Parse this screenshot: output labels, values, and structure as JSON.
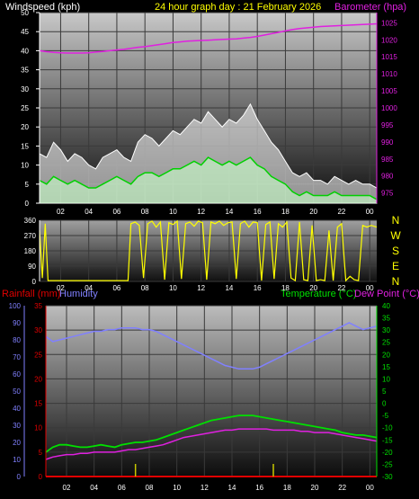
{
  "header": {
    "left_label": "Windspeed (kph)",
    "title": "24 hour graph day : 21 February 2026",
    "right_label": "Barometer (hpa)"
  },
  "panel3_labels": {
    "rainfall": "Rainfall (mm)",
    "humidity": "Humidity",
    "temperature": "Temperature (°C)",
    "dewpoint": "Dew Point (°C)"
  },
  "colors": {
    "wind_gust": "#ffffff",
    "wind_avg": "#c8ffc8",
    "wind_avg_line": "#00d000",
    "barometer": "#e020e0",
    "direction": "#ffff00",
    "humidity": "#8080ff",
    "temperature": "#00e000",
    "dewpoint": "#e020e0",
    "rain": "#e00000",
    "rain_marker": "#c8c800",
    "axis_left": "#ffffff",
    "axis_rain": "#e00000",
    "axis_temp": "#00e000",
    "axis_humidity": "#8080ff"
  },
  "x_ticks": [
    "02",
    "04",
    "06",
    "08",
    "10",
    "12",
    "14",
    "16",
    "18",
    "20",
    "22",
    "00"
  ],
  "chart_data": [
    {
      "type": "line",
      "name": "wind-and-barometer",
      "x_range": [
        0.5,
        24.5
      ],
      "wind_axis": {
        "ylim": [
          0,
          50
        ],
        "ticks": [
          0,
          5,
          10,
          15,
          20,
          25,
          30,
          35,
          40,
          45,
          50
        ]
      },
      "baro_axis": {
        "ylim": [
          972,
          1028
        ],
        "ticks": [
          975,
          980,
          985,
          990,
          995,
          1000,
          1005,
          1010,
          1015,
          1020,
          1025
        ]
      },
      "x": [
        0.5,
        1,
        1.5,
        2,
        2.5,
        3,
        3.5,
        4,
        4.5,
        5,
        5.5,
        6,
        6.5,
        7,
        7.5,
        8,
        8.5,
        9,
        9.5,
        10,
        10.5,
        11,
        11.5,
        12,
        12.5,
        13,
        13.5,
        14,
        14.5,
        15,
        15.5,
        16,
        16.5,
        17,
        17.5,
        18,
        18.5,
        19,
        19.5,
        20,
        20.5,
        21,
        21.5,
        22,
        22.5,
        23,
        23.5,
        24,
        24.5
      ],
      "series": [
        {
          "key": "gust",
          "values": [
            13,
            12,
            16,
            14,
            11,
            13,
            12,
            10,
            9,
            12,
            13,
            14,
            12,
            11,
            16,
            18,
            17,
            15,
            17,
            19,
            18,
            20,
            22,
            21,
            24,
            22,
            20,
            22,
            21,
            23,
            26,
            22,
            19,
            16,
            14,
            11,
            8,
            7,
            8,
            6,
            6,
            5,
            7,
            6,
            5,
            6,
            5,
            5,
            4
          ]
        },
        {
          "key": "avg",
          "values": [
            6,
            5,
            7,
            6,
            5,
            6,
            5,
            4,
            4,
            5,
            6,
            7,
            6,
            5,
            7,
            8,
            8,
            7,
            8,
            9,
            9,
            10,
            11,
            10,
            12,
            11,
            10,
            11,
            10,
            11,
            12,
            10,
            9,
            7,
            6,
            5,
            3,
            2,
            3,
            2,
            2,
            2,
            3,
            2,
            2,
            2,
            2,
            2,
            1
          ]
        },
        {
          "key": "barometer",
          "values": [
            1016.8,
            1016.5,
            1016.3,
            1016.2,
            1016.1,
            1016.1,
            1016.1,
            1016.2,
            1016.4,
            1016.6,
            1016.8,
            1017.0,
            1017.2,
            1017.5,
            1017.8,
            1018.0,
            1018.3,
            1018.6,
            1018.9,
            1019.2,
            1019.4,
            1019.6,
            1019.7,
            1019.8,
            1019.9,
            1020.0,
            1020.1,
            1020.2,
            1020.3,
            1020.5,
            1020.7,
            1021.0,
            1021.4,
            1021.8,
            1022.2,
            1022.6,
            1023.0,
            1023.3,
            1023.5,
            1023.7,
            1023.9,
            1024.0,
            1024.1,
            1024.2,
            1024.3,
            1024.4,
            1024.5,
            1024.6,
            1024.7
          ]
        }
      ]
    },
    {
      "type": "line",
      "name": "wind-direction",
      "x_range": [
        0.5,
        24.5
      ],
      "ylim": [
        0,
        360
      ],
      "y_ticks": [
        0,
        90,
        180,
        270,
        360
      ],
      "direction_labels": [
        "N",
        "W",
        "S",
        "E",
        "N"
      ],
      "x": [
        0.5,
        0.7,
        0.9,
        1.1,
        2,
        4,
        6,
        6.8,
        7,
        7.3,
        7.6,
        7.9,
        8.2,
        8.5,
        8.8,
        9.1,
        9.4,
        9.7,
        10,
        10.3,
        10.6,
        10.9,
        11.2,
        11.5,
        11.8,
        12.1,
        12.4,
        12.7,
        13,
        13.3,
        13.6,
        13.9,
        14.2,
        14.5,
        14.8,
        15.1,
        15.4,
        15.7,
        16,
        16.3,
        16.6,
        16.9,
        17.2,
        17.5,
        17.8,
        18.1,
        18.4,
        18.7,
        19,
        19.3,
        19.6,
        19.9,
        20.2,
        20.5,
        20.8,
        21.1,
        21.4,
        21.7,
        22,
        22.3,
        22.6,
        22.9,
        23.2,
        23.5,
        23.8,
        24.1,
        24.5
      ],
      "values": [
        300,
        20,
        340,
        5,
        5,
        5,
        5,
        5,
        340,
        350,
        330,
        20,
        340,
        355,
        320,
        350,
        10,
        345,
        335,
        355,
        15,
        340,
        350,
        325,
        355,
        345,
        10,
        350,
        340,
        355,
        330,
        345,
        350,
        15,
        340,
        355,
        320,
        350,
        345,
        5,
        335,
        350,
        15,
        340,
        320,
        350,
        20,
        5,
        350,
        10,
        5,
        330,
        5,
        10,
        5,
        300,
        5,
        320,
        340,
        5,
        30,
        10,
        5,
        330,
        320,
        330,
        320
      ]
    },
    {
      "type": "line",
      "name": "temperature-humidity-rain",
      "x_range": [
        0.5,
        24.5
      ],
      "temp_axis": {
        "ylim": [
          -30,
          40
        ],
        "ticks": [
          -30,
          -25,
          -20,
          -15,
          -10,
          -5,
          0,
          5,
          10,
          15,
          20,
          25,
          30,
          35,
          40
        ]
      },
      "rain_axis": {
        "ylim": [
          0,
          35
        ],
        "ticks": [
          0,
          5,
          10,
          15,
          20,
          25,
          30,
          35
        ]
      },
      "humidity_axis": {
        "ylim": [
          0,
          100
        ],
        "ticks": [
          0,
          10,
          20,
          30,
          40,
          50,
          60,
          70,
          80,
          90,
          100
        ]
      },
      "x": [
        0.5,
        1,
        1.5,
        2,
        2.5,
        3,
        3.5,
        4,
        4.5,
        5,
        5.5,
        6,
        6.5,
        7,
        7.5,
        8,
        8.5,
        9,
        9.5,
        10,
        10.5,
        11,
        11.5,
        12,
        12.5,
        13,
        13.5,
        14,
        14.5,
        15,
        15.5,
        16,
        16.5,
        17,
        17.5,
        18,
        18.5,
        19,
        19.5,
        20,
        20.5,
        21,
        21.5,
        22,
        22.5,
        23,
        23.5,
        24,
        24.5
      ],
      "series": [
        {
          "key": "humidity",
          "values": [
            82,
            79,
            80,
            81,
            82,
            83,
            84,
            85,
            85,
            86,
            86,
            87,
            87,
            87,
            86,
            86,
            85,
            83,
            81,
            79,
            77,
            75,
            73,
            71,
            69,
            67,
            65,
            64,
            63,
            63,
            63,
            64,
            66,
            68,
            70,
            72,
            74,
            76,
            78,
            80,
            82,
            84,
            86,
            88,
            90,
            88,
            86,
            87,
            88
          ]
        },
        {
          "key": "temperature",
          "values": [
            -20,
            -18,
            -17,
            -17,
            -17.5,
            -18,
            -18,
            -17.5,
            -17,
            -17.5,
            -18,
            -17,
            -16.5,
            -16,
            -16,
            -15.5,
            -15,
            -14,
            -13,
            -12,
            -11,
            -10,
            -9,
            -8,
            -7,
            -6.5,
            -6,
            -5.5,
            -5,
            -5,
            -5,
            -5.5,
            -6,
            -6.5,
            -7,
            -7.5,
            -8,
            -8.5,
            -9,
            -9.5,
            -10,
            -10.5,
            -11,
            -12,
            -12.5,
            -13,
            -13,
            -13.5,
            -14
          ]
        },
        {
          "key": "dewpoint",
          "values": [
            -23,
            -22,
            -21.5,
            -21,
            -21,
            -20.5,
            -20.5,
            -20,
            -20,
            -20,
            -20,
            -19.5,
            -19,
            -19,
            -18.5,
            -18,
            -17.5,
            -17,
            -16,
            -15,
            -14,
            -13.5,
            -13,
            -12.5,
            -12,
            -11.5,
            -11,
            -11,
            -10.5,
            -10.5,
            -10.5,
            -10.5,
            -10.5,
            -11,
            -11,
            -11,
            -11,
            -11.5,
            -11.5,
            -12,
            -12,
            -12,
            -12.5,
            -13,
            -13.5,
            -14,
            -14.5,
            -15,
            -15.5
          ]
        },
        {
          "key": "rain",
          "values": [
            0,
            0,
            0,
            0,
            0,
            0,
            0,
            0,
            0,
            0,
            0,
            0,
            0,
            0,
            0,
            0,
            0,
            0,
            0,
            0,
            0,
            0,
            0,
            0,
            0,
            0,
            0,
            0,
            0,
            0,
            0,
            0,
            0,
            0,
            0,
            0,
            0,
            0,
            0,
            0,
            0,
            0,
            0,
            0,
            0,
            0,
            0,
            0,
            0
          ]
        }
      ]
    }
  ]
}
